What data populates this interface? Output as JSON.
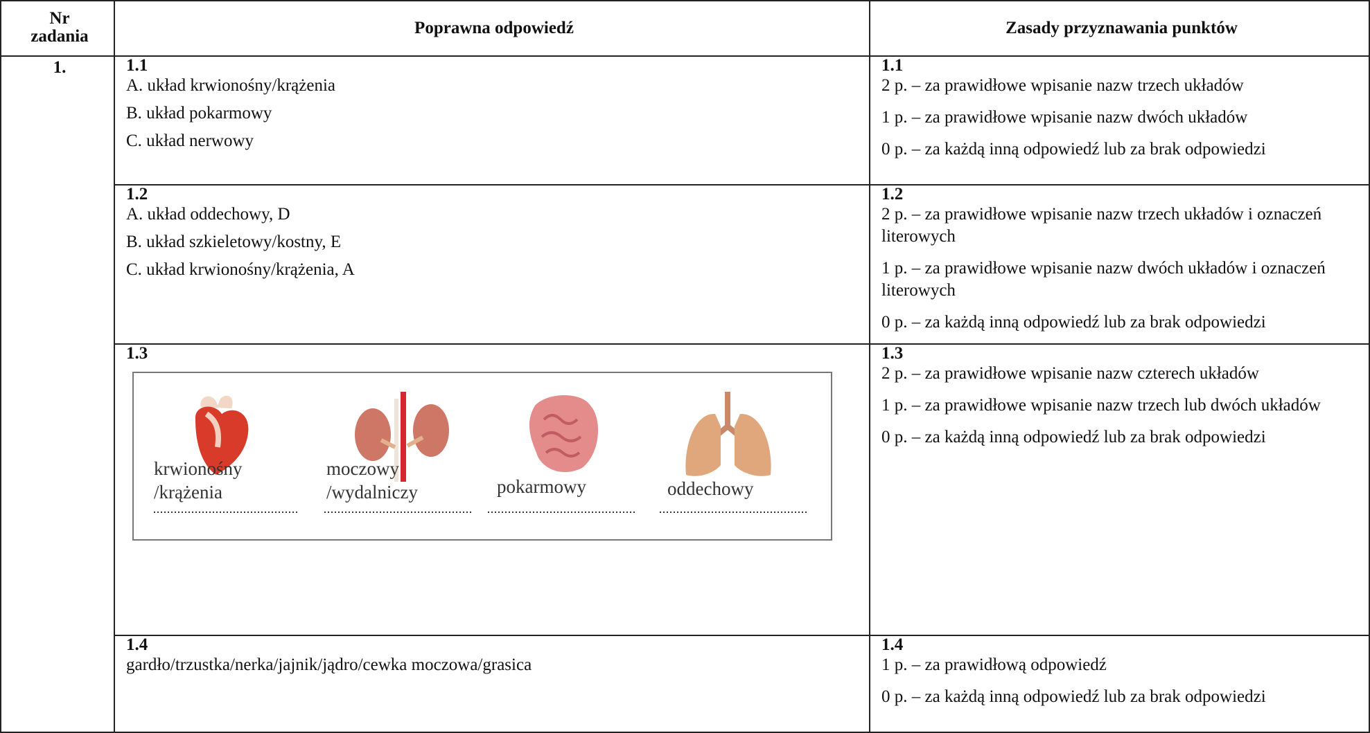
{
  "table": {
    "header": [
      "Nr zadania",
      "Poprawna odpowiedź",
      "Zasady przyznawania punktów"
    ],
    "task_number": "1.",
    "rows": [
      {
        "label": "1.1",
        "answers": [
          "A. układ krwionośny/krążenia",
          "B. układ pokarmowy",
          "C. układ nerwowy"
        ],
        "criteria_label": "1.1",
        "criteria": [
          "2 p. – za prawidłowe wpisanie nazw trzech układów",
          "1 p. – za prawidłowe wpisanie nazw dwóch układów",
          "0 p. – za każdą inną odpowiedź lub za brak odpowiedzi"
        ]
      },
      {
        "label": "1.2",
        "answers": [
          "A. układ oddechowy, D",
          "B. układ szkieletowy/kostny, E",
          "C. układ krwionośny/krążenia, A"
        ],
        "criteria_label": "1.2",
        "criteria": [
          "2 p. – za prawidłowe wpisanie nazw trzech układów i oznaczeń literowych",
          "1 p. – za prawidłowe wpisanie nazw dwóch układów i oznaczeń literowych",
          "0 p. – za każdą inną odpowiedź lub za brak odpowiedzi"
        ]
      },
      {
        "label": "1.3",
        "figure_labels": [
          "krwionośny",
          "/krążenia",
          "moczowy",
          "/wydalniczy",
          "pokarmowy",
          "oddechowy"
        ],
        "criteria_label": "1.3",
        "criteria": [
          "2 p. – za prawidłowe wpisanie nazw czterech układów",
          "1 p. – za prawidłowe wpisanie nazw trzech lub dwóch układów",
          "0 p. – za każdą inną odpowiedź lub za brak odpowiedzi"
        ]
      },
      {
        "label": "1.4",
        "answers": [
          "gardło/trzustka/nerka/jajnik/jądro/cewka moczowa/grasica"
        ],
        "criteria_label": "1.4",
        "criteria": [
          "1 p. – za prawidłową odpowiedź",
          "0 p. – za każdą inną odpowiedź lub za brak odpowiedzi"
        ]
      }
    ]
  }
}
